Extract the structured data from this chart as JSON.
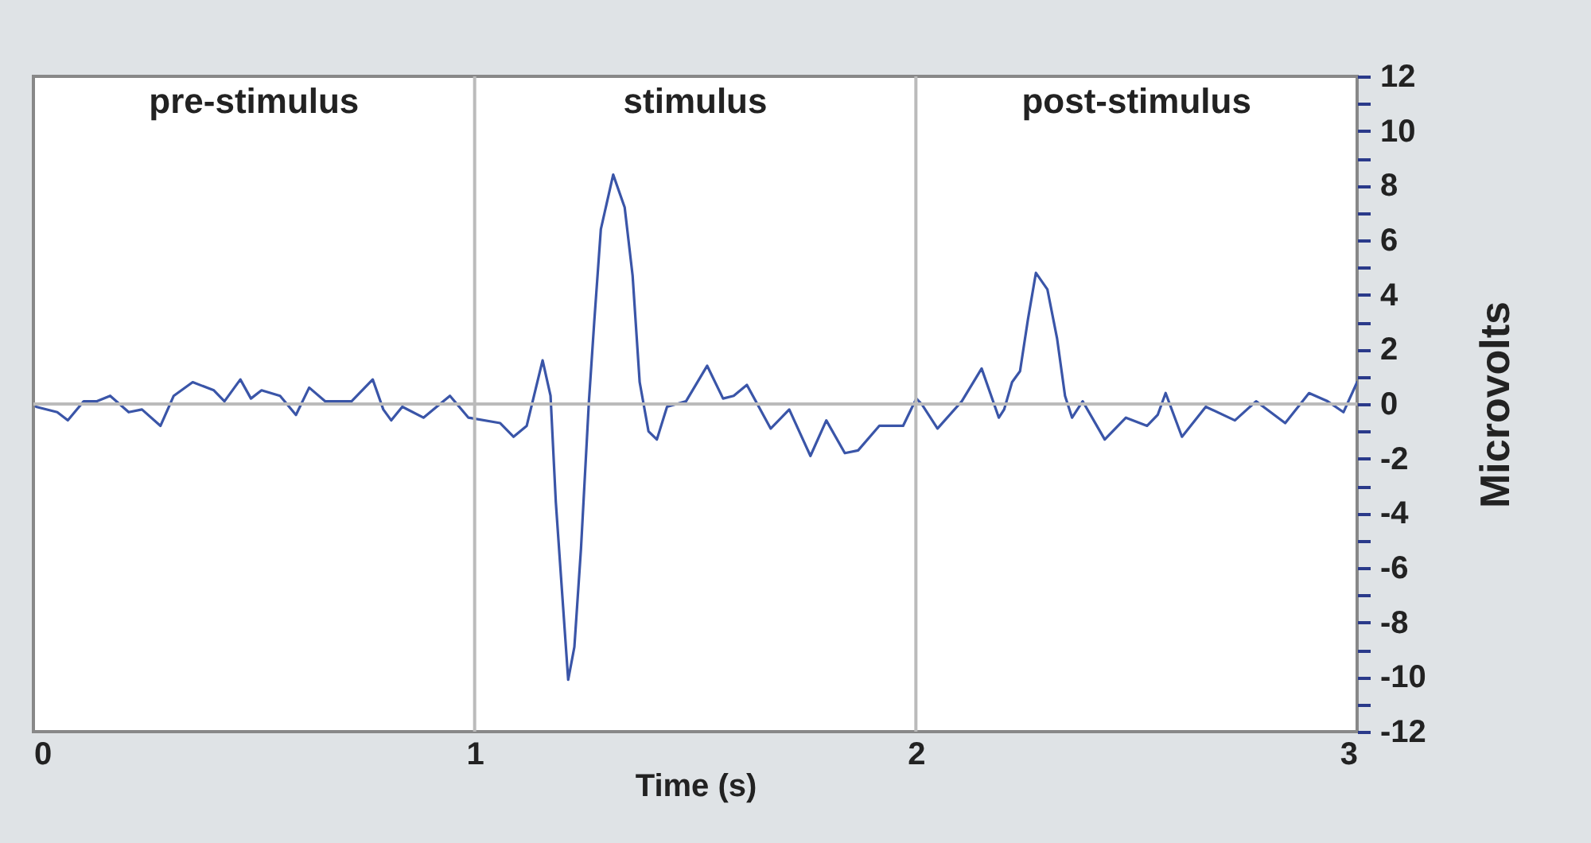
{
  "chart_data": {
    "type": "line",
    "xlabel": "Time (s)",
    "ylabel": "Microvolts",
    "x": [
      0.006,
      0.054,
      0.078,
      0.114,
      0.144,
      0.174,
      0.216,
      0.246,
      0.288,
      0.318,
      0.361,
      0.409,
      0.433,
      0.469,
      0.493,
      0.517,
      0.559,
      0.595,
      0.625,
      0.661,
      0.721,
      0.769,
      0.793,
      0.811,
      0.836,
      0.884,
      0.944,
      0.986,
      1.058,
      1.088,
      1.118,
      1.154,
      1.172,
      1.184,
      1.196,
      1.212,
      1.226,
      1.241,
      1.259,
      1.271,
      1.286,
      1.314,
      1.34,
      1.358,
      1.374,
      1.394,
      1.413,
      1.436,
      1.479,
      1.527,
      1.563,
      1.587,
      1.617,
      1.671,
      1.713,
      1.761,
      1.797,
      1.839,
      1.869,
      1.917,
      1.971,
      2.001,
      2.013,
      2.049,
      2.104,
      2.149,
      2.188,
      2.2,
      2.218,
      2.236,
      2.254,
      2.272,
      2.298,
      2.32,
      2.338,
      2.354,
      2.378,
      2.428,
      2.476,
      2.524,
      2.548,
      2.566,
      2.603,
      2.657,
      2.723,
      2.771,
      2.837,
      2.891,
      2.933,
      2.969,
      3.0
    ],
    "series": [
      {
        "color": "#3a55a8",
        "values": [
          -0.1,
          -0.3,
          -0.6,
          0.1,
          0.1,
          0.3,
          -0.3,
          -0.2,
          -0.8,
          0.3,
          0.8,
          0.5,
          0.1,
          0.9,
          0.2,
          0.5,
          0.3,
          -0.4,
          0.6,
          0.1,
          0.1,
          0.9,
          -0.2,
          -0.6,
          -0.1,
          -0.5,
          0.3,
          -0.5,
          -0.7,
          -1.2,
          -0.8,
          1.6,
          0.3,
          -3.6,
          -6.4,
          -10.1,
          -8.9,
          -5.3,
          0.1,
          3.0,
          6.4,
          8.4,
          7.2,
          4.7,
          0.8,
          -1.0,
          -1.3,
          -0.1,
          0.1,
          1.4,
          0.2,
          0.3,
          0.7,
          -0.9,
          -0.2,
          -1.9,
          -0.6,
          -1.8,
          -1.7,
          -0.8,
          -0.8,
          0.2,
          0.0,
          -0.9,
          0.1,
          1.3,
          -0.5,
          -0.2,
          0.8,
          1.2,
          3.1,
          4.8,
          4.2,
          2.4,
          0.3,
          -0.5,
          0.1,
          -1.3,
          -0.5,
          -0.8,
          -0.4,
          0.4,
          -1.2,
          -0.1,
          -0.6,
          0.1,
          -0.7,
          0.4,
          0.1,
          -0.3,
          0.8
        ]
      }
    ],
    "xlim": [
      0,
      3
    ],
    "xticks": [
      0,
      1,
      2,
      3
    ],
    "ylim": [
      -12,
      12
    ],
    "yticks": [
      -12,
      {
        "value": -11,
        "label": null
      },
      -10,
      {
        "value": -9,
        "label": null
      },
      -8,
      {
        "value": -7,
        "label": null
      },
      -6,
      {
        "value": -5,
        "label": null
      },
      -4,
      {
        "value": -3,
        "label": null
      },
      -2,
      {
        "value": -1,
        "label": null
      },
      0,
      {
        "value": 1,
        "label": null
      },
      2,
      {
        "value": 3,
        "label": null
      },
      4,
      {
        "value": 5,
        "label": null
      },
      6,
      {
        "value": 7,
        "label": null
      },
      8,
      {
        "value": 9,
        "label": null
      },
      10,
      {
        "value": 11,
        "label": null
      },
      12
    ],
    "ref_lines": [
      {
        "axis": "x",
        "value": 1,
        "color": "#bbbbbb"
      },
      {
        "axis": "x",
        "value": 2,
        "color": "#bbbbbb"
      },
      {
        "axis": "y",
        "value": 0,
        "color": "#bbbbbb"
      }
    ],
    "annotations": [
      "pre-stimulus",
      "stimulus",
      "post-stimulus"
    ],
    "grid": false,
    "marker": "none",
    "line_style": "solid"
  }
}
